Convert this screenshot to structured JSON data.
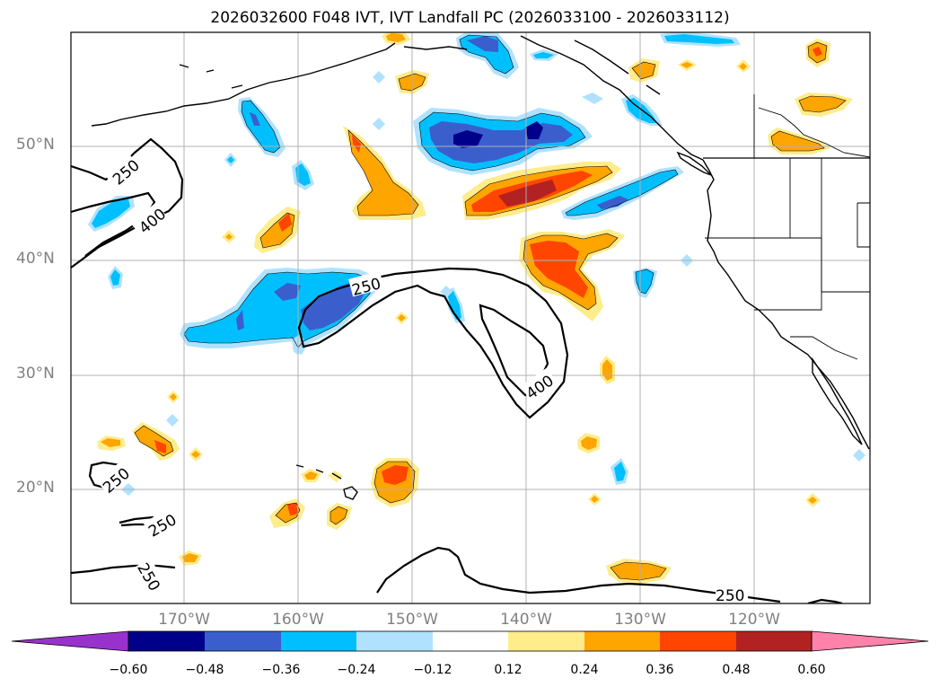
{
  "title": "2026032600 F048 IVT, IVT Landfall PC (2026033100 - 2026033112)",
  "latitude_labels": [
    "50°N",
    "40°N",
    "30°N",
    "20°N"
  ],
  "longitude_labels": [
    "170°W",
    "160°W",
    "150°W",
    "140°W",
    "130°W",
    "120°W"
  ],
  "contour_labels": {
    "a": "250",
    "b": "400",
    "c": "250",
    "d": "400",
    "e": "250",
    "f": "250",
    "g": "250",
    "h": "250"
  },
  "colorbar": {
    "ticks": [
      "−0.60",
      "−0.48",
      "−0.36",
      "−0.24",
      "−0.12",
      "0.12",
      "0.24",
      "0.36",
      "0.48",
      "0.60"
    ],
    "colors": [
      "#9932cc",
      "#00008b",
      "#3a5fcd",
      "#00bfff",
      "#b0e2ff",
      "#ffffff",
      "#ffec8b",
      "#ffa500",
      "#ff4500",
      "#b22222",
      "#ff82ab"
    ]
  },
  "colors": {
    "pc_pos_low": "#ffec8b",
    "pc_pos_mid": "#ffa500",
    "pc_pos_high": "#ff4500",
    "pc_pos_max": "#b22222",
    "pc_neg_low": "#b0e2ff",
    "pc_neg_mid": "#00bfff",
    "pc_neg_high": "#3a5fcd",
    "pc_neg_max": "#00008b"
  }
}
